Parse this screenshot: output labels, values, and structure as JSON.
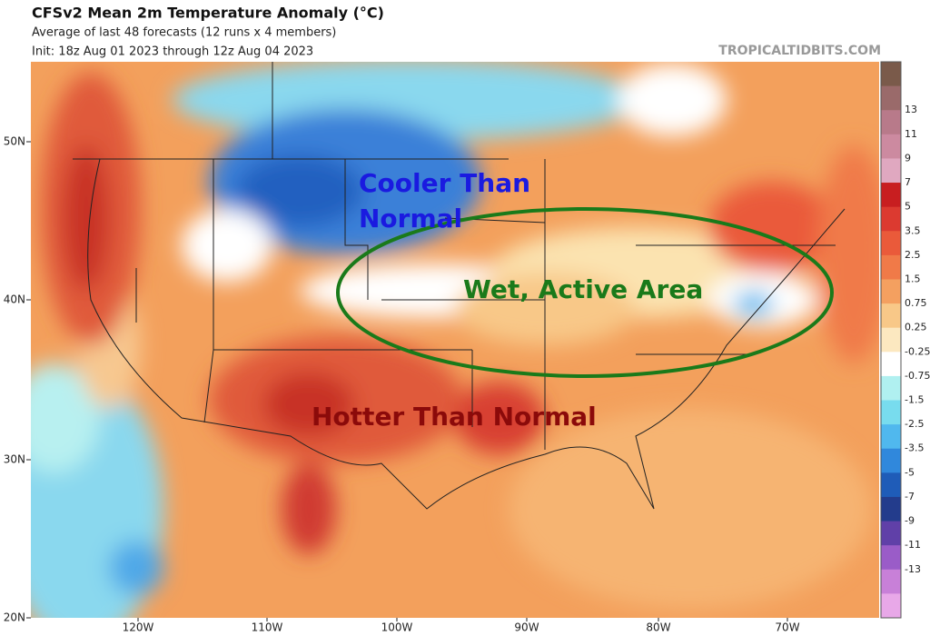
{
  "header": {
    "title": "CFSv2 Mean 2m Temperature Anomaly (°C)",
    "subtitle": "Average of last 48 forecasts (12 runs x 4 members)",
    "init": "Init: 18z Aug 01 2023 through 12z Aug 04 2023",
    "watermark": "TROPICALTIDBITS.COM"
  },
  "latitude_labels": [
    "50N",
    "40N",
    "30N",
    "20N"
  ],
  "longitude_labels": [
    "120W",
    "110W",
    "100W",
    "90W",
    "80W",
    "70W"
  ],
  "annotations": {
    "cooler": [
      "Cooler Than",
      "Normal"
    ],
    "wet": "Wet, Active Area",
    "hotter": "Hotter Than Normal"
  },
  "colorbar": {
    "labels": [
      "13",
      "11",
      "9",
      "7",
      "5",
      "3.5",
      "2.5",
      "1.5",
      "0.75",
      "0.25",
      "-0.25",
      "-0.75",
      "-1.5",
      "-2.5",
      "-3.5",
      "-5",
      "-7",
      "-9",
      "-11",
      "-13"
    ],
    "colors": [
      "#7a5a4a",
      "#9a6a6a",
      "#b87a8a",
      "#cc8aa0",
      "#e0a8c0",
      "#c81e20",
      "#dc3a30",
      "#ea5a3a",
      "#f07a48",
      "#f4a060",
      "#f8c888",
      "#fce8c0",
      "#ffffff",
      "#b0f0f0",
      "#78dcee",
      "#50b8ee",
      "#3088dc",
      "#1f5cb8",
      "#233c8c",
      "#6040a8",
      "#9a5cc8",
      "#c880d8",
      "#e8a8e8"
    ]
  }
}
